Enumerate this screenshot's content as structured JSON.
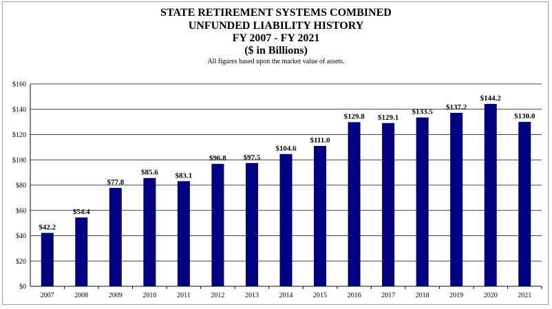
{
  "chart_data": {
    "type": "bar",
    "title_lines": [
      "STATE RETIREMENT SYSTEMS COMBINED",
      "UNFUNDED LIABILITY HISTORY",
      "FY 2007 - FY 2021",
      "($ in Billions)"
    ],
    "subtitle": "All figures based upon the market value of assets.",
    "categories": [
      "2007",
      "2008",
      "2009",
      "2010",
      "2011",
      "2012",
      "2013",
      "2014",
      "2015",
      "2016",
      "2017",
      "2018",
      "2019",
      "2020",
      "2021"
    ],
    "values": [
      42.2,
      54.4,
      77.8,
      85.6,
      83.1,
      96.8,
      97.5,
      104.6,
      111.0,
      129.8,
      129.1,
      133.5,
      137.2,
      144.2,
      130.0
    ],
    "data_labels": [
      "$42.2",
      "$54.4",
      "$77.8",
      "$85.6",
      "$83.1",
      "$96.8",
      "$97.5",
      "$104.6",
      "$111.0",
      "$129.8",
      "$129.1",
      "$133.5",
      "$137.2",
      "$144.2",
      "$130.0"
    ],
    "y_ticks": [
      0,
      20,
      40,
      60,
      80,
      100,
      120,
      140,
      160
    ],
    "y_tick_labels": [
      "$0",
      "$20",
      "$40",
      "$60",
      "$80",
      "$100",
      "$120",
      "$140",
      "$160"
    ],
    "ylim": [
      0,
      160
    ],
    "xlabel": "",
    "ylabel": "",
    "grid": true,
    "bar_color": "#000080"
  }
}
